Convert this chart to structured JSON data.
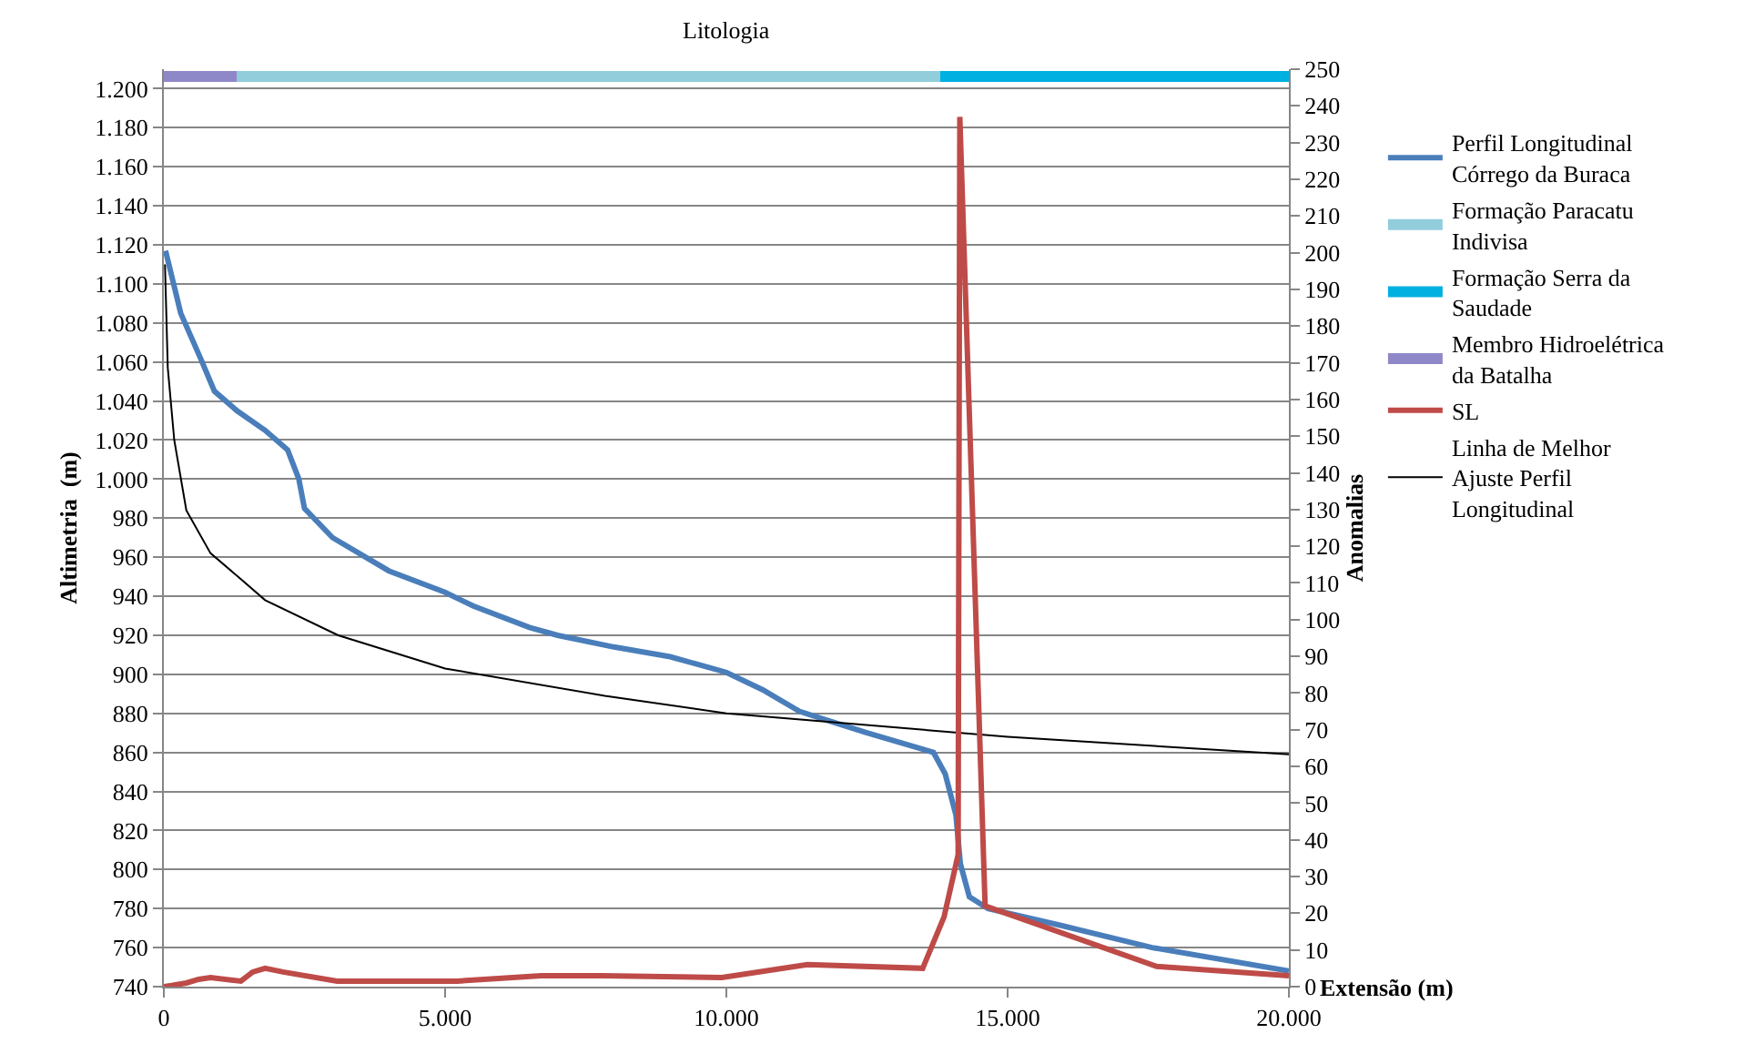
{
  "chart_data": {
    "type": "line",
    "xlabel": "Extensão (m)",
    "ylabel": "Altimetria  (m)",
    "y2label": "Anomalias",
    "annotations": [
      "Litologia"
    ],
    "xlim": [
      0,
      20000
    ],
    "xticks": [
      0,
      {
        "value": 5000,
        "label": "5.000"
      },
      {
        "value": 10000,
        "label": "10.000"
      },
      {
        "value": 15000,
        "label": "15.000"
      },
      {
        "value": 20000,
        "label": "20.000"
      }
    ],
    "ylim": [
      740,
      1210
    ],
    "yticks": [
      740,
      760,
      780,
      800,
      820,
      840,
      860,
      880,
      900,
      920,
      940,
      960,
      980,
      {
        "value": 1000,
        "label": "1.000"
      },
      {
        "value": 1020,
        "label": "1.020"
      },
      {
        "value": 1040,
        "label": "1.040"
      },
      {
        "value": 1060,
        "label": "1.060"
      },
      {
        "value": 1080,
        "label": "1.080"
      },
      {
        "value": 1100,
        "label": "1.100"
      },
      {
        "value": 1120,
        "label": "1.120"
      },
      {
        "value": 1140,
        "label": "1.140"
      },
      {
        "value": 1160,
        "label": "1.160"
      },
      {
        "value": 1180,
        "label": "1.180"
      },
      {
        "value": 1200,
        "label": "1.200"
      }
    ],
    "y2lim": [
      0,
      250
    ],
    "y2ticks": [
      0,
      10,
      20,
      30,
      40,
      50,
      60,
      70,
      80,
      90,
      100,
      110,
      120,
      130,
      140,
      150,
      160,
      170,
      180,
      190,
      200,
      210,
      220,
      230,
      240,
      250
    ],
    "grid": "y",
    "legend": "right",
    "marker": "none",
    "line_style": "solid",
    "series": [
      {
        "name": "Perfil Longitudinal Córrego da Buraca",
        "color": "#4a7ebb",
        "x": [
          30,
          300,
          650,
          900,
          1300,
          1800,
          2200,
          2400,
          2500,
          3000,
          4000,
          5000,
          5500,
          6500,
          7000,
          8000,
          9000,
          10000,
          10650,
          11300,
          11730,
          12500,
          13680,
          13890,
          14080,
          14160,
          14320,
          14650,
          16000,
          17570,
          20000
        ],
        "values": [
          1117,
          1085,
          1062,
          1045,
          1035,
          1025,
          1015,
          1000,
          985,
          970,
          953,
          942,
          935,
          924,
          920,
          914,
          909,
          901,
          892,
          881,
          877,
          870,
          860,
          849,
          828,
          803,
          786,
          780,
          771,
          760,
          748
        ]
      },
      {
        "name": "Formação Paracatu Indivisa",
        "color": "#92cddc",
        "axis": "y2",
        "x": [
          1300,
          13800
        ],
        "values": [
          248,
          248
        ]
      },
      {
        "name": "Formação Serra da Saudade",
        "color": "#00b0e0",
        "axis": "y2",
        "x": [
          13800,
          20000
        ],
        "values": [
          248,
          248
        ]
      },
      {
        "name": "Membro Hidroelétrica da Batalha",
        "color": "#8f88c8",
        "axis": "y2",
        "x": [
          0,
          1300
        ],
        "values": [
          248,
          248
        ]
      },
      {
        "name": "SL",
        "color": "#be4b48",
        "axis": "y2",
        "x": [
          0,
          140,
          400,
          620,
          830,
          1370,
          1580,
          1800,
          2120,
          3080,
          5210,
          6710,
          7780,
          9920,
          11440,
          13490,
          13870,
          14120,
          14150,
          14600,
          17650,
          20000
        ],
        "values": [
          0,
          0.3,
          1,
          2,
          2.5,
          1.5,
          4,
          5,
          4,
          1.5,
          1.5,
          3,
          3,
          2.5,
          6,
          5,
          19,
          36,
          237,
          22,
          5.5,
          3
        ]
      },
      {
        "name": "Linha de Melhor Ajuste Perfil Longitudinal",
        "color": "#000000",
        "x": [
          20,
          70,
          185,
          400,
          830,
          1360,
          1800,
          3100,
          5000,
          7840,
          10000,
          15000,
          20000
        ],
        "values": [
          1110,
          1057,
          1020,
          984,
          962,
          949,
          938,
          920,
          903,
          889,
          880,
          868,
          859
        ]
      }
    ]
  }
}
